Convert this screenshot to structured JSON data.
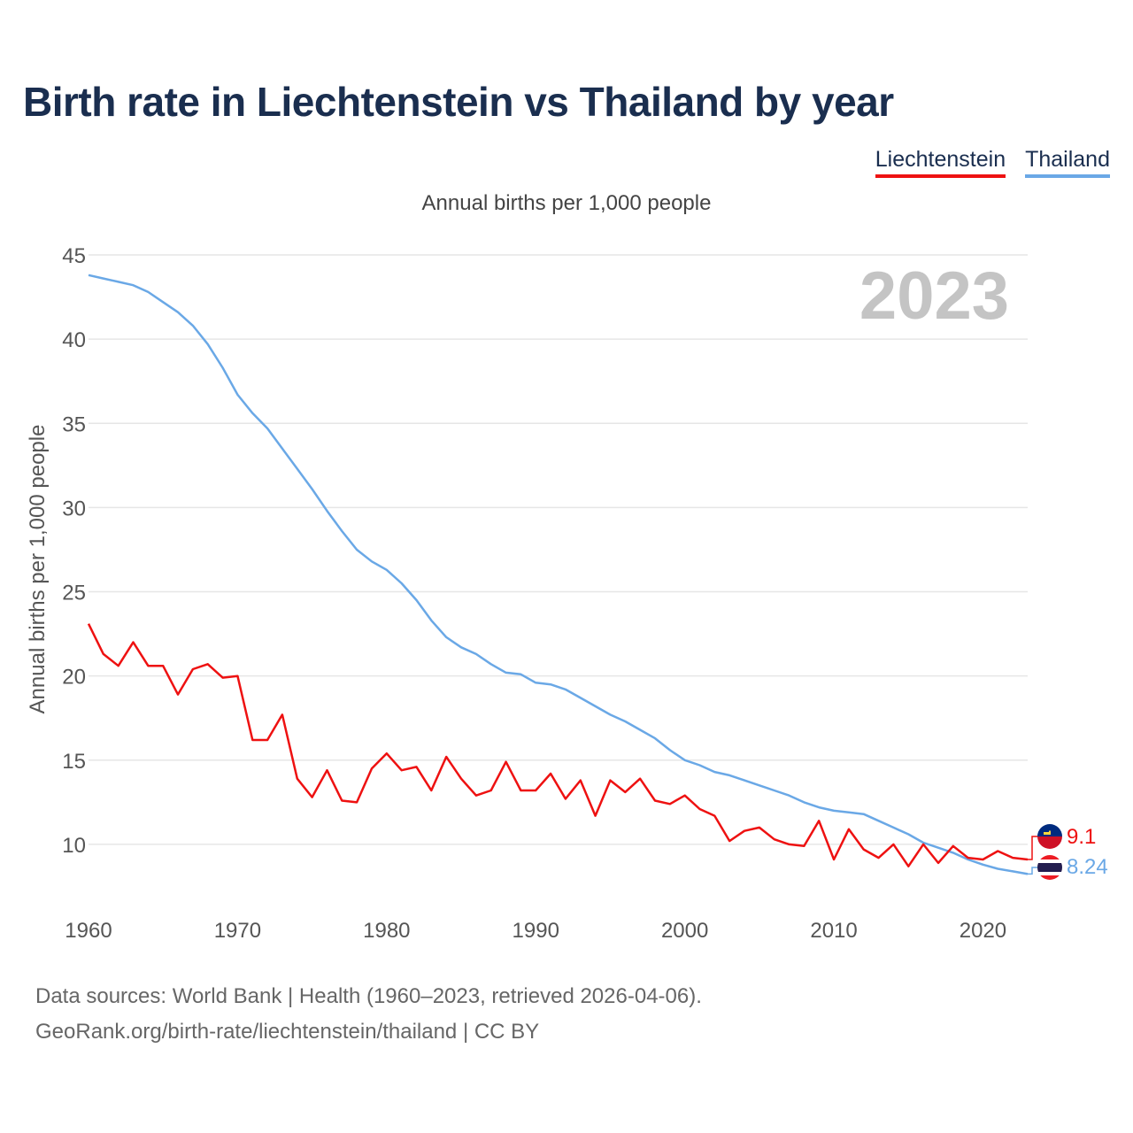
{
  "title": "Birth rate in Liechtenstein vs Thailand by year",
  "subtitle": "Annual births per 1,000 people",
  "year_watermark": "2023",
  "legend": [
    {
      "name": "Liechtenstein",
      "color": "#ee1111"
    },
    {
      "name": "Thailand",
      "color": "#6aa8e6"
    }
  ],
  "source_line1": "Data sources: World Bank | Health (1960–2023, retrieved 2026-04-06).",
  "source_line2": "GeoRank.org/birth-rate/liechtenstein/thailand | CC BY",
  "chart_data": {
    "type": "line",
    "title": "Birth rate in Liechtenstein vs Thailand by year",
    "xlabel": "",
    "ylabel": "Annual births per 1,000 people",
    "xlim": [
      1960,
      2023
    ],
    "ylim": [
      7,
      45
    ],
    "yticks": [
      10,
      15,
      20,
      25,
      30,
      35,
      40,
      45
    ],
    "xticks": [
      1960,
      1970,
      1980,
      1990,
      2000,
      2010,
      2020
    ],
    "grid": true,
    "legend_position": "top-right",
    "x": [
      1960,
      1961,
      1962,
      1963,
      1964,
      1965,
      1966,
      1967,
      1968,
      1969,
      1970,
      1971,
      1972,
      1973,
      1974,
      1975,
      1976,
      1977,
      1978,
      1979,
      1980,
      1981,
      1982,
      1983,
      1984,
      1985,
      1986,
      1987,
      1988,
      1989,
      1990,
      1991,
      1992,
      1993,
      1994,
      1995,
      1996,
      1997,
      1998,
      1999,
      2000,
      2001,
      2002,
      2003,
      2004,
      2005,
      2006,
      2007,
      2008,
      2009,
      2010,
      2011,
      2012,
      2013,
      2014,
      2015,
      2016,
      2017,
      2018,
      2019,
      2020,
      2021,
      2022,
      2023
    ],
    "series": [
      {
        "name": "Liechtenstein",
        "color": "#ee1111",
        "end_label": "9.1",
        "values": [
          23.1,
          21.3,
          20.6,
          22.0,
          20.6,
          20.6,
          18.9,
          20.4,
          20.7,
          19.9,
          20.0,
          16.2,
          16.2,
          17.7,
          13.9,
          12.8,
          14.4,
          12.6,
          12.5,
          14.5,
          15.4,
          14.4,
          14.6,
          13.2,
          15.2,
          13.9,
          12.9,
          13.2,
          14.9,
          13.2,
          13.2,
          14.2,
          12.7,
          13.8,
          11.7,
          13.8,
          13.1,
          13.9,
          12.6,
          12.4,
          12.9,
          12.1,
          11.7,
          10.2,
          10.8,
          11.0,
          10.3,
          10.0,
          9.9,
          11.4,
          9.1,
          10.9,
          9.7,
          9.2,
          10.0,
          8.7,
          10.0,
          8.9,
          9.9,
          9.2,
          9.1,
          9.6,
          9.2,
          9.1
        ]
      },
      {
        "name": "Thailand",
        "color": "#6aa8e6",
        "end_label": "8.24",
        "values": [
          43.8,
          43.6,
          43.4,
          43.2,
          42.8,
          42.2,
          41.6,
          40.8,
          39.7,
          38.3,
          36.7,
          35.6,
          34.7,
          33.5,
          32.3,
          31.1,
          29.8,
          28.6,
          27.5,
          26.8,
          26.3,
          25.5,
          24.5,
          23.3,
          22.3,
          21.7,
          21.3,
          20.7,
          20.2,
          20.1,
          19.6,
          19.5,
          19.2,
          18.7,
          18.2,
          17.7,
          17.3,
          16.8,
          16.3,
          15.6,
          15.0,
          14.7,
          14.3,
          14.1,
          13.8,
          13.5,
          13.2,
          12.9,
          12.5,
          12.2,
          12.0,
          11.9,
          11.8,
          11.4,
          11.0,
          10.6,
          10.1,
          9.8,
          9.5,
          9.1,
          8.8,
          8.55,
          8.4,
          8.24
        ]
      }
    ]
  }
}
